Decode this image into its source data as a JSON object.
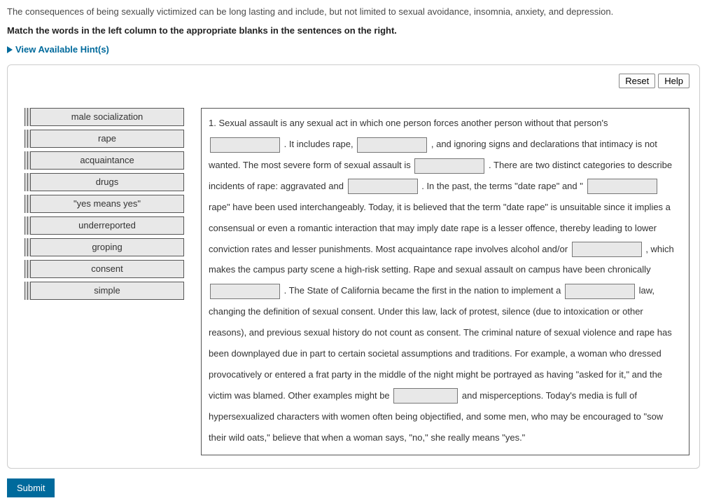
{
  "intro": "The consequences of being sexually victimized can be long lasting and include, but not limited to sexual avoidance, insomnia, anxiety, and depression.",
  "instruction": "Match the words in the left column to the appropriate blanks in the sentences on the right.",
  "hints_label": "View Available Hint(s)",
  "buttons": {
    "reset": "Reset",
    "help": "Help",
    "submit": "Submit"
  },
  "terms": [
    "male socialization",
    "rape",
    "acquaintance",
    "drugs",
    "\"yes means yes\"",
    "underreported",
    "groping",
    "consent",
    "simple"
  ],
  "passage": {
    "p1a": "1. Sexual assault is any sexual act in which one person forces another person without that person's ",
    "p1b": " . It includes rape, ",
    "p1c": " , and ignoring signs and declarations that intimacy is not wanted. The most severe form of sexual assault is ",
    "p1d": " . There are two distinct categories to describe incidents of rape: aggravated and ",
    "p1e": " . In the past, the terms \"date rape\" and \"",
    "p1f": " rape\" have been used interchangeably. Today, it is believed that the term \"date rape\" is unsuitable since it implies a consensual or even a romantic interaction that may imply date rape is a lesser offence, thereby leading to lower conviction rates and lesser punishments. Most acquaintance rape involves alcohol and/or ",
    "p1g": " , which makes the campus party scene a high-risk setting. Rape and sexual assault on campus have been chronically ",
    "p1h": " . The State of California became the first in the nation to implement a ",
    "p1i": " law, changing the definition of sexual consent. Under this law, lack of protest, silence (due to intoxication or other reasons), and previous sexual history do not count as consent. The criminal nature of sexual violence and rape has been downplayed due in part to certain societal assumptions and traditions. For example, a woman who dressed provocatively or entered a frat party in the middle of the night might be portrayed as having \"asked for it,\" and the victim was blamed. Other examples might be ",
    "p1j": " and misperceptions. Today's media is full of hypersexualized characters with women often being objectified, and some men, who may be encouraged to \"sow their wild oats,\" believe that when a woman says, \"no,\" she really means \"yes.\""
  }
}
